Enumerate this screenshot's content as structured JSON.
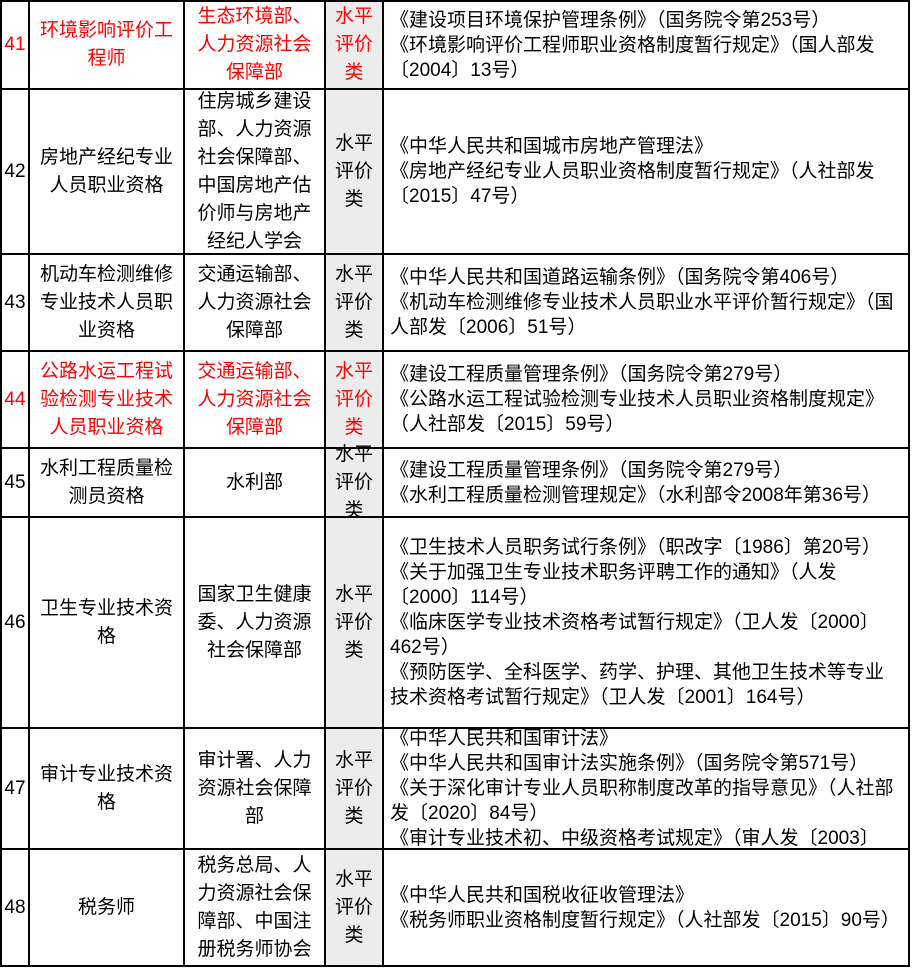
{
  "colors": {
    "highlight_text": "#ff0000",
    "category_bg": "#ececec",
    "border": "#000000",
    "text": "#000000"
  },
  "table": {
    "rows": [
      {
        "num": "41",
        "name": "环境影响评价工程师",
        "dept": "生态环境部、人力资源社会保障部",
        "category": "水平评价类",
        "highlight": true,
        "legal": [
          "《建设项目环境保护管理条例》（国务院令第253号）",
          "《环境影响评价工程师职业资格制度暂行规定》（国人部发〔2004〕13号）"
        ]
      },
      {
        "num": "42",
        "name": "房地产经纪专业人员职业资格",
        "dept": "住房城乡建设部、人力资源社会保障部、中国房地产估价师与房地产经纪人学会",
        "category": "水平评价类",
        "highlight": false,
        "legal": [
          "《中华人民共和国城市房地产管理法》",
          "《房地产经纪专业人员职业资格制度暂行规定》（人社部发〔2015〕47号）"
        ]
      },
      {
        "num": "43",
        "name": "机动车检测维修专业技术人员职业资格",
        "dept": "交通运输部、人力资源社会保障部",
        "category": "水平评价类",
        "highlight": false,
        "legal": [
          "《中华人民共和国道路运输条例》（国务院令第406号）",
          "《机动车检测维修专业技术人员职业水平评价暂行规定》（国人部发〔2006〕51号）"
        ]
      },
      {
        "num": "44",
        "name": "公路水运工程试验检测专业技术人员职业资格",
        "dept": "交通运输部、人力资源社会保障部",
        "category": "水平评价类",
        "highlight": true,
        "legal": [
          "《建设工程质量管理条例》（国务院令第279号）",
          "《公路水运工程试验检测专业技术人员职业资格制度规定》（人社部发〔2015〕59号）"
        ]
      },
      {
        "num": "45",
        "name": "水利工程质量检测员资格",
        "dept": "水利部",
        "category": "水平评价类",
        "highlight": false,
        "legal": [
          "《建设工程质量管理条例》（国务院令第279号）",
          "《水利工程质量检测管理规定》（水利部令2008年第36号）"
        ]
      },
      {
        "num": "46",
        "name": "卫生专业技术资格",
        "dept": "国家卫生健康委、人力资源社会保障部",
        "category": "水平评价类",
        "highlight": false,
        "legal": [
          "《卫生技术人员职务试行条例》（职改字〔1986〕第20号）",
          "《关于加强卫生专业技术职务评聘工作的通知》（人发〔2000〕114号）",
          "《临床医学专业技术资格考试暂行规定》（卫人发〔2000〕462号）",
          "《预防医学、全科医学、药学、护理、其他卫生技术等专业技术资格考试暂行规定》（卫人发〔2001〕164号）"
        ]
      },
      {
        "num": "47",
        "name": "审计专业技术资格",
        "dept": "审计署、人力资源社会保障部",
        "category": "水平评价类",
        "highlight": false,
        "legal": [
          "《中华人民共和国审计法》",
          "《中华人民共和国审计法实施条例》（国务院令第571号）",
          "《关于深化审计专业人员职称制度改革的指导意见》（人社部发〔2020〕84号）",
          "《审计专业技术初、中级资格考试规定》（审人发〔2003〕"
        ]
      },
      {
        "num": "48",
        "name": "税务师",
        "dept": "税务总局、人力资源社会保障部、中国注册税务师协会",
        "category": "水平评价类",
        "highlight": false,
        "legal": [
          "《中华人民共和国税收征收管理法》",
          "《税务师职业资格制度暂行规定》（人社部发〔2015〕90号）"
        ]
      }
    ]
  }
}
